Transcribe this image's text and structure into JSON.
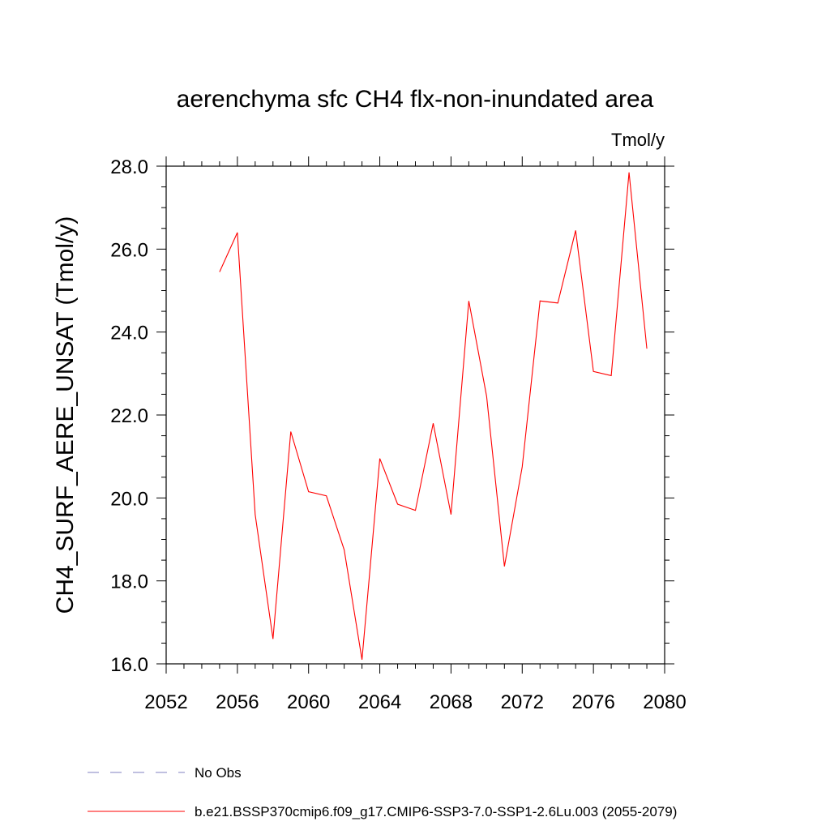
{
  "chart_data": {
    "type": "line",
    "title": "aerenchyma sfc CH4 flx-non-inundated area",
    "units_label": "Tmol/y",
    "ylabel": "CH4_SURF_AERE_UNSAT  (Tmol/y)",
    "xlabel": "",
    "xlim": [
      2052,
      2080
    ],
    "ylim": [
      16.0,
      28.0
    ],
    "x_ticks": [
      "2052",
      "2056",
      "2060",
      "2064",
      "2068",
      "2072",
      "2076",
      "2080"
    ],
    "y_ticks": [
      "16.0",
      "18.0",
      "20.0",
      "22.0",
      "24.0",
      "26.0",
      "28.0"
    ],
    "grid": false,
    "series": [
      {
        "name": "b.e21.BSSP370cmip6.f09_g17.CMIP6-SSP3-7.0-SSP1-2.6Lu.003 (2055-2079)",
        "color": "#ff0000",
        "style": "solid",
        "x": [
          2055,
          2056,
          2057,
          2058,
          2059,
          2060,
          2061,
          2062,
          2063,
          2064,
          2065,
          2066,
          2067,
          2068,
          2069,
          2070,
          2071,
          2072,
          2073,
          2074,
          2075,
          2076,
          2077,
          2078,
          2079
        ],
        "y": [
          25.45,
          26.4,
          19.6,
          16.6,
          21.6,
          20.15,
          20.05,
          18.75,
          16.1,
          20.95,
          19.85,
          19.7,
          21.8,
          19.6,
          24.75,
          22.45,
          18.35,
          20.75,
          24.75,
          24.7,
          26.45,
          23.05,
          22.95,
          27.85,
          23.6
        ]
      }
    ],
    "legend": [
      {
        "label": "No Obs",
        "color": "#8080c0",
        "style": "dashed"
      },
      {
        "label": "b.e21.BSSP370cmip6.f09_g17.CMIP6-SSP3-7.0-SSP1-2.6Lu.003 (2055-2079)",
        "color": "#ff0000",
        "style": "solid"
      }
    ],
    "legend_position": "bottom-left"
  }
}
